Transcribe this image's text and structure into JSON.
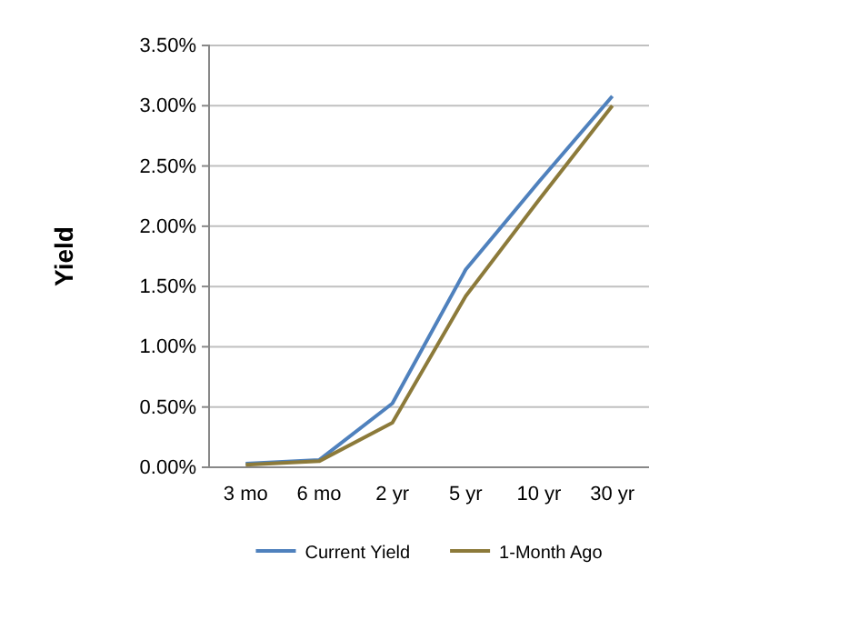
{
  "chart_data": {
    "type": "line",
    "ylabel": "Yield",
    "categories": [
      "3 mo",
      "6 mo",
      "2 yr",
      "5 yr",
      "10 yr",
      "30 yr"
    ],
    "series": [
      {
        "name": "Current Yield",
        "color": "#4f81bd",
        "values": [
          0.03,
          0.06,
          0.53,
          1.64,
          2.37,
          3.08
        ]
      },
      {
        "name": "1-Month Ago",
        "color": "#8c7a3a",
        "values": [
          0.02,
          0.05,
          0.37,
          1.42,
          2.22,
          3.0
        ]
      }
    ],
    "ylim": [
      0,
      3.5
    ],
    "yticks": [
      {
        "value": 0,
        "label": "0.00%"
      },
      {
        "value": 0.5,
        "label": "0.50%"
      },
      {
        "value": 1,
        "label": "1.00%"
      },
      {
        "value": 1.5,
        "label": "1.50%"
      },
      {
        "value": 2,
        "label": "2.00%"
      },
      {
        "value": 2.5,
        "label": "2.50%"
      },
      {
        "value": 3,
        "label": "3.00%"
      },
      {
        "value": 3.5,
        "label": "3.50%"
      }
    ],
    "grid": "y",
    "legend": "bottom",
    "marker": "none",
    "line_style": "solid"
  }
}
